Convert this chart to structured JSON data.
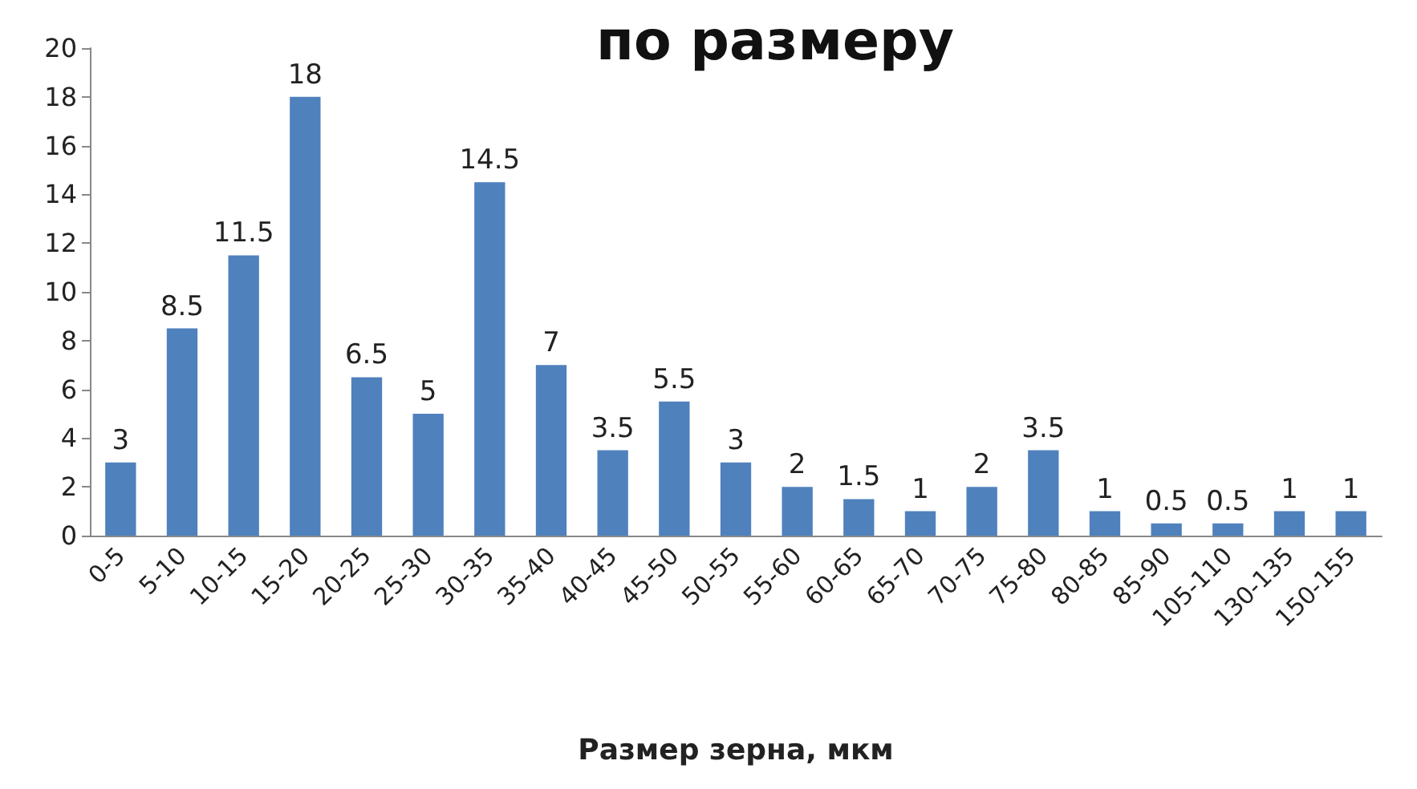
{
  "chart_data": {
    "type": "bar",
    "title": "по размеру",
    "xlabel": "Размер зерна, мкм",
    "categories": [
      "0-5",
      "5-10",
      "10-15",
      "15-20",
      "20-25",
      "25-30",
      "30-35",
      "35-40",
      "40-45",
      "45-50",
      "50-55",
      "55-60",
      "60-65",
      "65-70",
      "70-75",
      "75-80",
      "80-85",
      "85-90",
      "105-110",
      "130-135",
      "150-155"
    ],
    "values": [
      3,
      8.5,
      11.5,
      18,
      6.5,
      5,
      14.5,
      7,
      3.5,
      5.5,
      3,
      2,
      1.5,
      1,
      2,
      3.5,
      1,
      0.5,
      0.5,
      1,
      1
    ],
    "color": "#4f81bd",
    "ylim": [
      0,
      20
    ],
    "yticks": [
      0,
      2,
      4,
      6,
      8,
      10,
      12,
      14,
      16,
      18,
      20
    ],
    "data_labels": true,
    "grid": false
  }
}
